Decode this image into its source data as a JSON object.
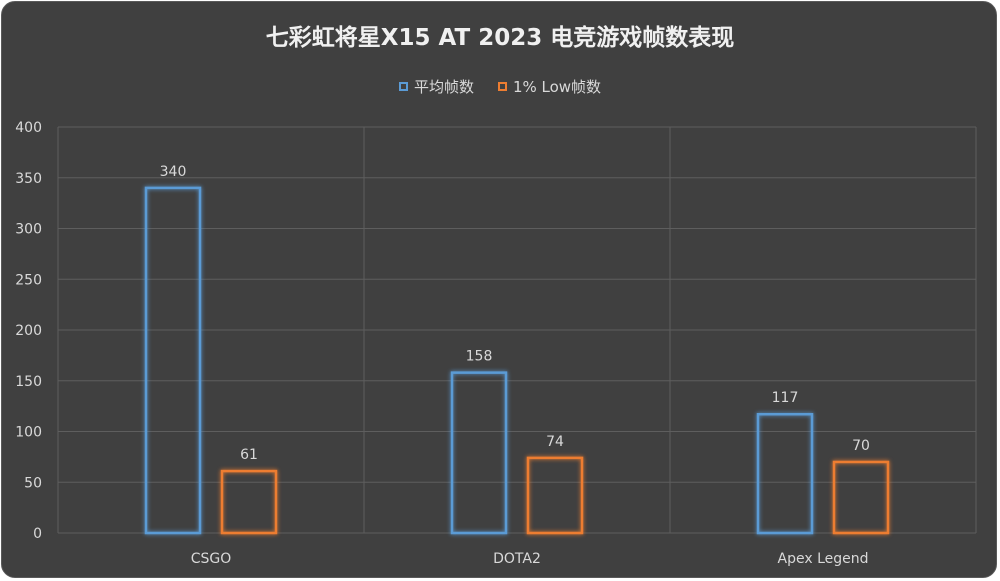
{
  "chart_data": {
    "type": "bar",
    "title": "七彩虹将星X15 AT 2023 电竞游戏帧数表现",
    "categories": [
      "CSGO",
      "DOTA2",
      "Apex Legend"
    ],
    "series": [
      {
        "name": "平均帧数",
        "values": [
          340,
          158,
          117
        ],
        "color": "#5b9bd5"
      },
      {
        "name": "1% Low帧数",
        "values": [
          61,
          74,
          70
        ],
        "color": "#ed7d31"
      }
    ],
    "ylim": [
      0,
      400
    ],
    "yticks": [
      0,
      50,
      100,
      150,
      200,
      250,
      300,
      350,
      400
    ],
    "grid": true,
    "legend_position": "top-center",
    "background": "#404040"
  }
}
